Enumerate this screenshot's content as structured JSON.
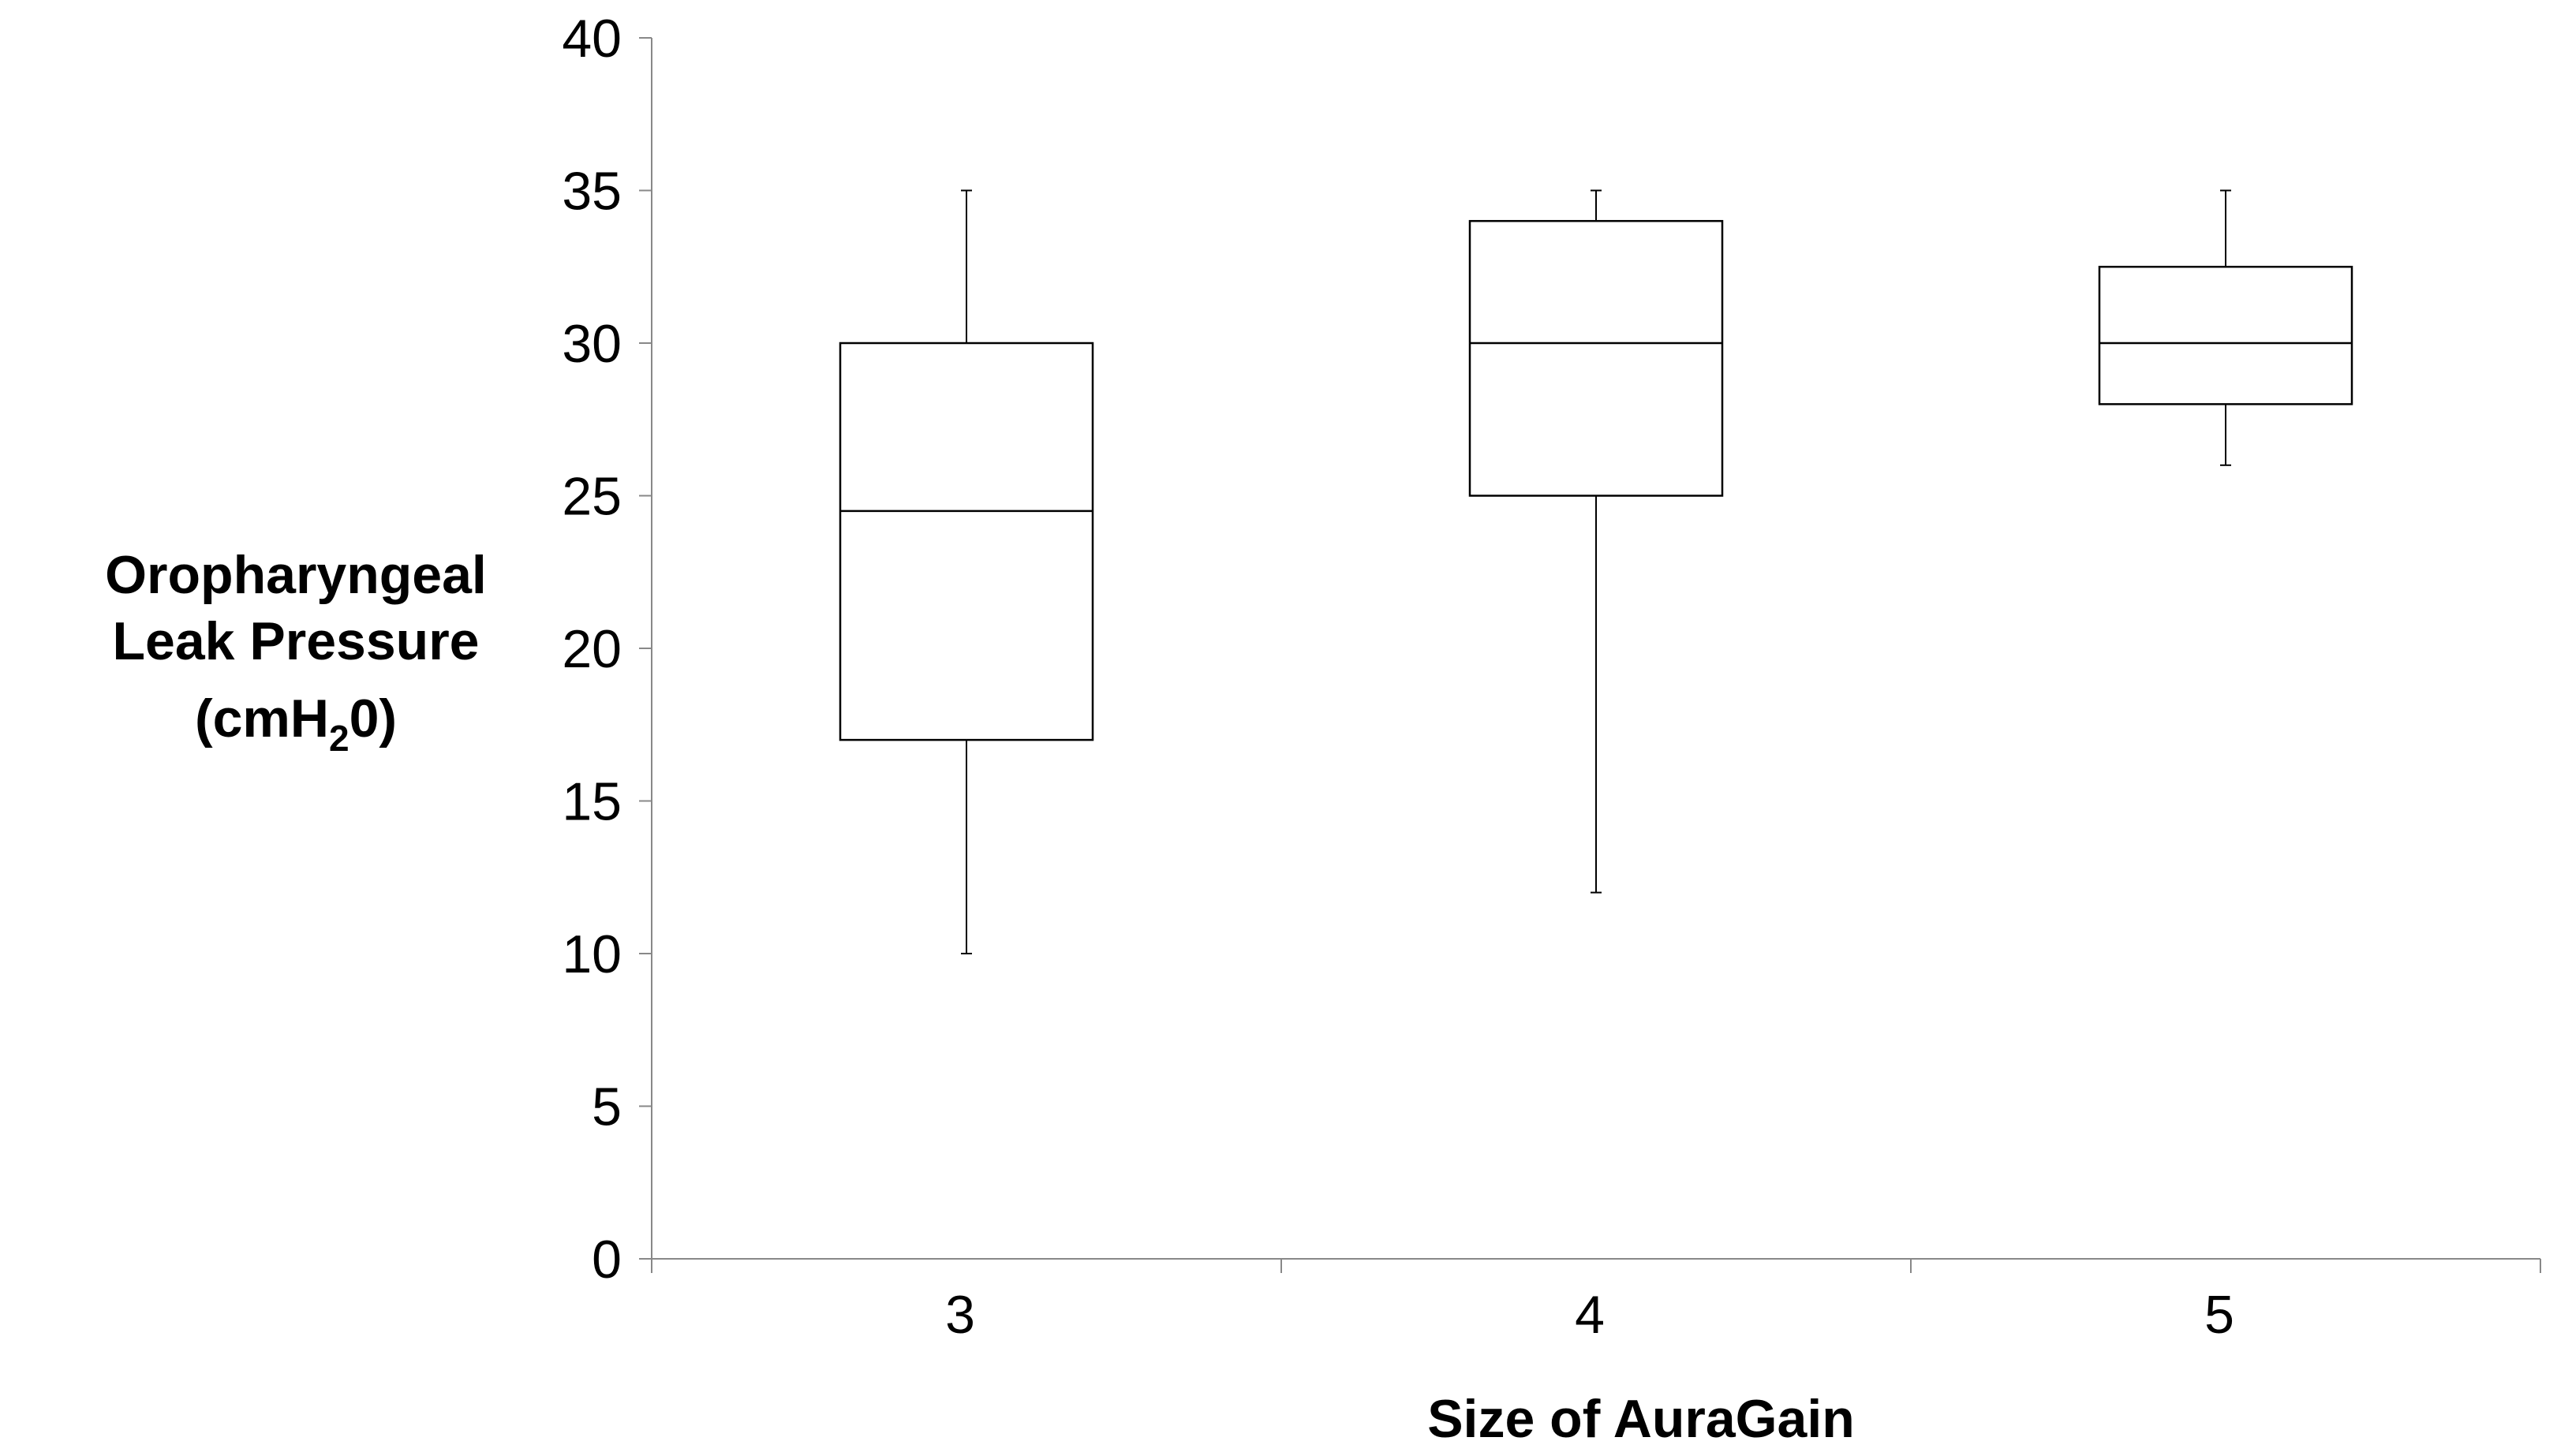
{
  "chart_data": {
    "type": "box",
    "title": "",
    "xlabel": "Size of AuraGain",
    "ylabel": {
      "line1": "Oropharyngeal",
      "line2": "Leak Pressure",
      "line3_prefix": "(cmH",
      "line3_sub": "2",
      "line3_suffix": "0)"
    },
    "ylim": [
      0,
      40
    ],
    "yticks": [
      0,
      5,
      10,
      15,
      20,
      25,
      30,
      35,
      40
    ],
    "categories": [
      "3",
      "4",
      "5"
    ],
    "boxes": [
      {
        "category": "3",
        "min": 10,
        "q1": 17,
        "median": 24.5,
        "q3": 30,
        "max": 35
      },
      {
        "category": "4",
        "min": 12,
        "q1": 25,
        "median": 30,
        "q3": 34,
        "max": 35
      },
      {
        "category": "5",
        "min": 26,
        "q1": 28,
        "median": 30,
        "q3": 32.5,
        "max": 35
      }
    ],
    "grid": false,
    "legend": "none",
    "colors": {
      "line": "#000000",
      "axis": "#888888",
      "box_fill": "#ffffff"
    }
  }
}
